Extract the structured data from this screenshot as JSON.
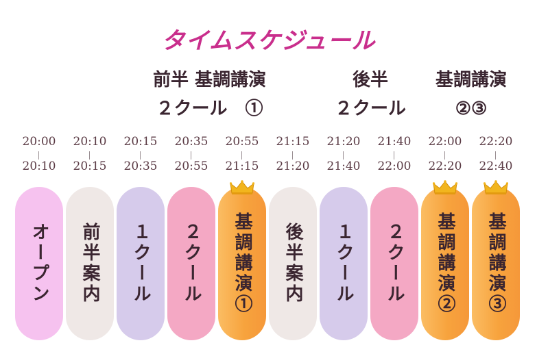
{
  "title": "タイムスケジュール",
  "groups": [
    {
      "line1": "前半 基調講演",
      "line2": "２クール　①"
    },
    {
      "line1": "後半",
      "line2": "２クール"
    },
    {
      "line1": "基調講演",
      "line2": "②③"
    }
  ],
  "columns": [
    {
      "start": "20:00",
      "end": "20:10",
      "label": "オープン",
      "type": "open",
      "crown": false
    },
    {
      "start": "20:10",
      "end": "20:15",
      "label": "前半案内",
      "type": "guide",
      "crown": false
    },
    {
      "start": "20:15",
      "end": "20:35",
      "label": "１クール",
      "type": "one",
      "crown": false
    },
    {
      "start": "20:35",
      "end": "20:55",
      "label": "２クール",
      "type": "two",
      "crown": false
    },
    {
      "start": "20:55",
      "end": "21:15",
      "label": "基調講演①",
      "type": "key",
      "crown": true
    },
    {
      "start": "21:15",
      "end": "21:20",
      "label": "後半案内",
      "type": "guide",
      "crown": false
    },
    {
      "start": "21:20",
      "end": "21:40",
      "label": "１クール",
      "type": "one",
      "crown": false
    },
    {
      "start": "21:40",
      "end": "22:00",
      "label": "２クール",
      "type": "two",
      "crown": false
    },
    {
      "start": "22:00",
      "end": "22:20",
      "label": "基調講演②",
      "type": "key",
      "crown": true
    },
    {
      "start": "22:20",
      "end": "22:40",
      "label": "基調講演③",
      "type": "key",
      "crown": true
    }
  ],
  "colors": {
    "title": "#c92e8c",
    "open": "#f6c2ef",
    "guide": "#efe8e6",
    "one": "#d6cbeb",
    "two": "#f4a8c4",
    "key": "#f7a33d",
    "crown": "#f2b51d"
  },
  "icons": {
    "crown": "crown-icon"
  }
}
